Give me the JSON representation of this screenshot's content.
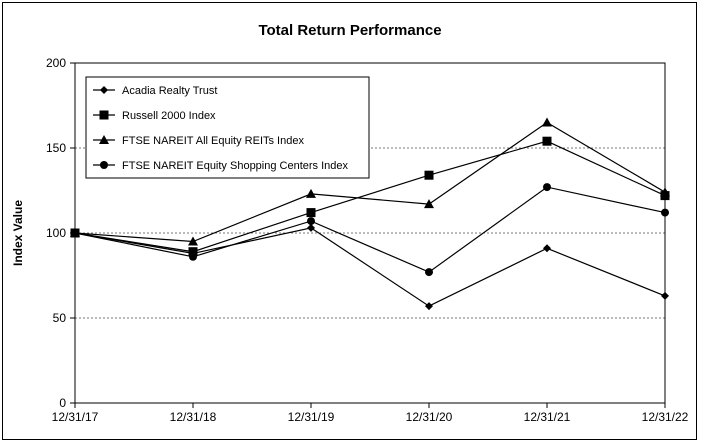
{
  "chart_data": {
    "type": "line",
    "title": "Total Return Performance",
    "xlabel": "",
    "ylabel": "Index Value",
    "categories": [
      "12/31/17",
      "12/31/18",
      "12/31/19",
      "12/31/20",
      "12/31/21",
      "12/31/22"
    ],
    "ylim": [
      0,
      200
    ],
    "yticks": [
      0,
      50,
      100,
      150,
      200
    ],
    "grid": "horizontal dotted at 50, 100, 150",
    "legend_position": "top-left",
    "series": [
      {
        "name": "Acadia Realty Trust",
        "marker": "diamond",
        "values": [
          100,
          88,
          103,
          57,
          91,
          63
        ]
      },
      {
        "name": "Russell 2000 Index",
        "marker": "square",
        "values": [
          100,
          89,
          112,
          134,
          154,
          122
        ]
      },
      {
        "name": "FTSE NAREIT All Equity REITs Index",
        "marker": "triangle",
        "values": [
          100,
          95,
          123,
          117,
          165,
          124
        ]
      },
      {
        "name": "FTSE NAREIT Equity Shopping Centers Index",
        "marker": "circle",
        "values": [
          100,
          86,
          107,
          77,
          127,
          112
        ]
      }
    ]
  }
}
